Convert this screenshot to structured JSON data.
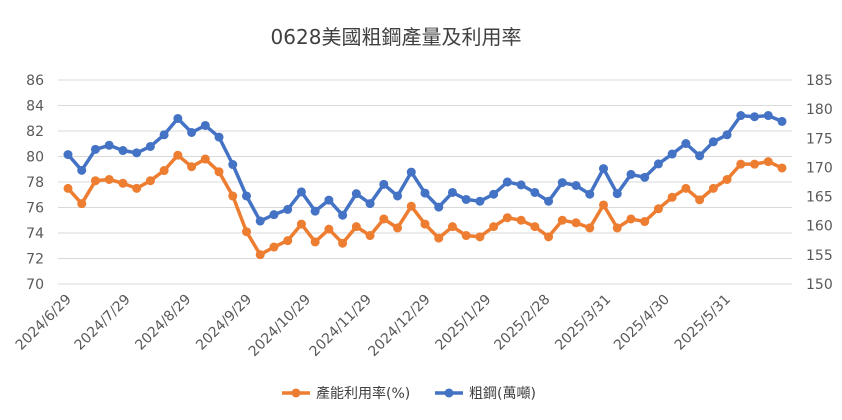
{
  "chart_data": {
    "type": "line",
    "title": "0628美國粗鋼產量及利用率",
    "x": [
      "2024/6/29",
      "2024/7/6",
      "2024/7/13",
      "2024/7/20",
      "2024/7/27",
      "2024/8/3",
      "2024/8/10",
      "2024/8/17",
      "2024/8/24",
      "2024/8/31",
      "2024/9/7",
      "2024/9/14",
      "2024/9/21",
      "2024/9/28",
      "2024/10/5",
      "2024/10/12",
      "2024/10/19",
      "2024/10/26",
      "2024/11/2",
      "2024/11/9",
      "2024/11/16",
      "2024/11/23",
      "2024/11/30",
      "2024/12/7",
      "2024/12/14",
      "2024/12/21",
      "2024/12/28",
      "2025/1/4",
      "2025/1/11",
      "2025/1/18",
      "2025/1/25",
      "2025/2/1",
      "2025/2/8",
      "2025/2/15",
      "2025/2/22",
      "2025/3/1",
      "2025/3/8",
      "2025/3/15",
      "2025/3/22",
      "2025/3/29",
      "2025/4/5",
      "2025/4/12",
      "2025/4/19",
      "2025/4/26",
      "2025/5/3",
      "2025/5/10",
      "2025/5/17",
      "2025/5/24",
      "2025/5/31",
      "2025/6/7",
      "2025/6/14",
      "2025/6/21",
      "2025/6/28"
    ],
    "x_tick_labels": [
      "2024/6/29",
      "2024/7/29",
      "2024/8/29",
      "2024/9/29",
      "2024/10/29",
      "2024/11/29",
      "2024/12/29",
      "2025/1/29",
      "2025/2/28",
      "2025/3/31",
      "2025/4/30",
      "2025/5/31"
    ],
    "x_tick_positions": [
      0,
      4.29,
      8.71,
      13.14,
      17.43,
      21.86,
      26.14,
      30.57,
      34.86,
      39.29,
      43.57,
      48.0
    ],
    "y_left": {
      "min": 70,
      "max": 86,
      "step": 2,
      "ticks": [
        "70",
        "72",
        "74",
        "76",
        "78",
        "80",
        "82",
        "84",
        "86"
      ]
    },
    "y_right": {
      "min": 150,
      "max": 185,
      "step": 5,
      "ticks": [
        "150",
        "155",
        "160",
        "165",
        "170",
        "175",
        "180",
        "185"
      ]
    },
    "series": [
      {
        "name": "產能利用率(%)",
        "axis": "left",
        "color": "#ED7D31",
        "values": [
          77.5,
          76.3,
          78.1,
          78.2,
          77.9,
          77.5,
          78.1,
          78.9,
          80.1,
          79.2,
          79.8,
          78.8,
          76.9,
          74.1,
          72.3,
          72.9,
          73.4,
          74.7,
          73.3,
          74.3,
          73.2,
          74.5,
          73.8,
          75.1,
          74.4,
          76.1,
          74.7,
          73.6,
          74.5,
          73.8,
          73.7,
          74.5,
          75.2,
          75.0,
          74.5,
          73.7,
          75.0,
          74.8,
          74.4,
          76.2,
          74.4,
          75.1,
          74.9,
          75.9,
          76.8,
          77.5,
          76.6,
          77.5,
          78.2,
          79.4,
          79.4,
          79.6,
          79.1
        ]
      },
      {
        "name": "粗鋼(萬噸)",
        "axis": "right",
        "color": "#4472C4",
        "values": [
          172.2,
          169.5,
          173.1,
          173.8,
          172.9,
          172.5,
          173.6,
          175.6,
          178.4,
          176.0,
          177.2,
          175.2,
          170.5,
          165.1,
          160.8,
          161.9,
          162.8,
          165.8,
          162.5,
          164.4,
          161.8,
          165.5,
          163.8,
          167.1,
          165.1,
          169.2,
          165.6,
          163.2,
          165.7,
          164.5,
          164.2,
          165.4,
          167.5,
          167.0,
          165.7,
          164.2,
          167.4,
          166.9,
          165.4,
          169.8,
          165.5,
          168.8,
          168.3,
          170.6,
          172.3,
          174.1,
          172.0,
          174.4,
          175.6,
          178.9,
          178.7,
          178.9,
          177.9
        ]
      }
    ],
    "legend": {
      "position": "bottom",
      "labels": [
        "產能利用率(%)",
        "粗鋼(萬噸)"
      ]
    }
  }
}
